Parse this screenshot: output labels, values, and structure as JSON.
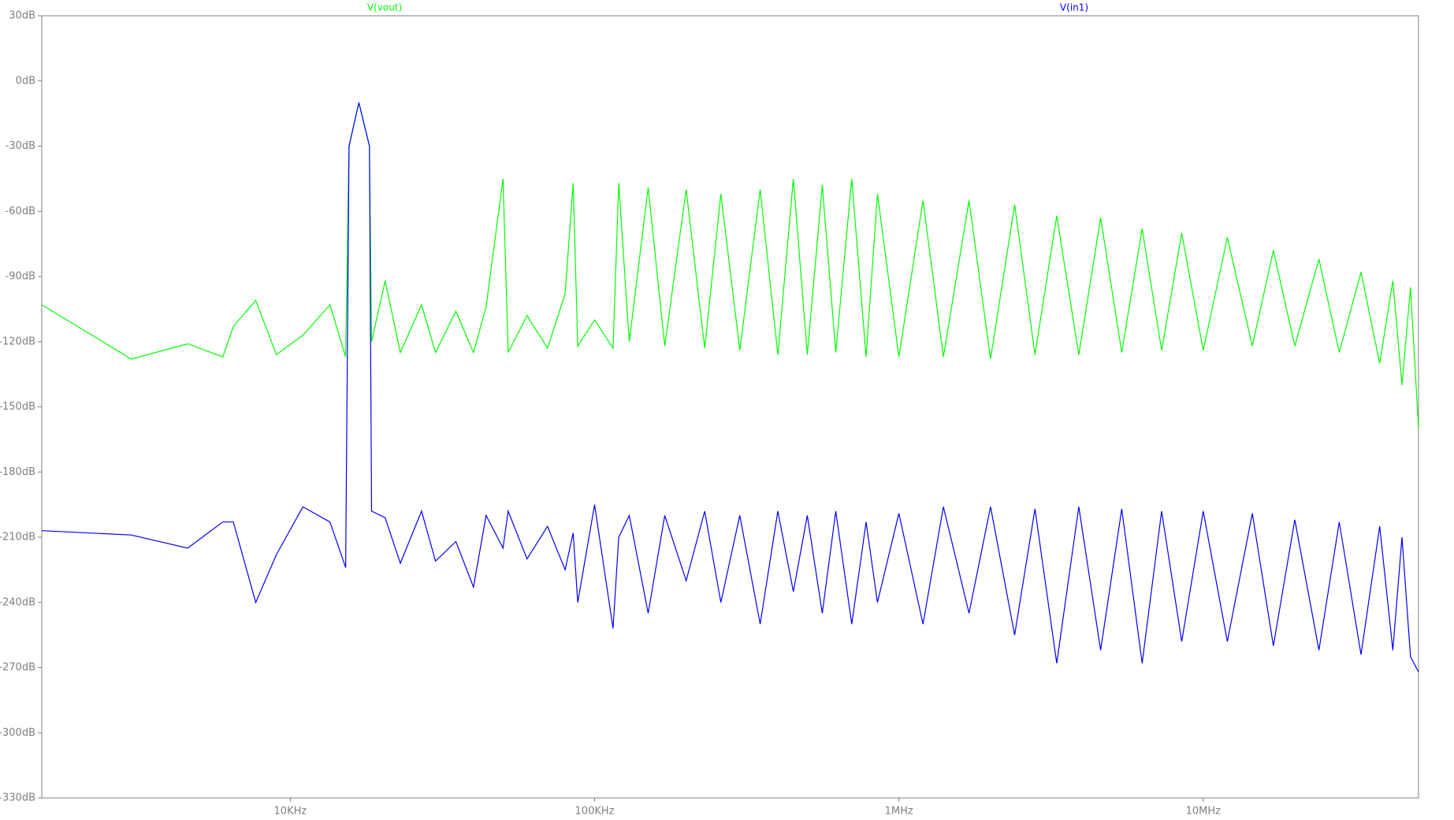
{
  "chart_data": {
    "type": "line",
    "xscale": "log",
    "grid": false,
    "x": [
      1525,
      3000,
      4600,
      6000,
      6500,
      7700,
      9000,
      11000,
      13500,
      15200,
      15600,
      16800,
      18200,
      18500,
      20500,
      23000,
      27000,
      30000,
      35000,
      40000,
      44000,
      50000,
      52000,
      60000,
      70000,
      80000,
      85000,
      88000,
      100000,
      115000,
      120000,
      130000,
      150000,
      170000,
      200000,
      230000,
      260000,
      300000,
      350000,
      400000,
      450000,
      500000,
      560000,
      620000,
      700000,
      780000,
      850000,
      1000000,
      1200000,
      1400000,
      1700000,
      2000000,
      2400000,
      2800000,
      3300000,
      3900000,
      4600000,
      5400000,
      6300000,
      7300000,
      8500000,
      10000000,
      12000000,
      14500000,
      17000000,
      20000000,
      24000000,
      28000000,
      33000000,
      38000000,
      42000000,
      45000000,
      48000000,
      51000000
    ],
    "series": [
      {
        "name": "V(vout)",
        "color": "#00ff00",
        "values": [
          -103,
          -128,
          -121,
          -127,
          -113,
          -101,
          -126,
          -117,
          -103,
          -127,
          -30,
          -10,
          -30,
          -120,
          -92,
          -125,
          -103,
          -125,
          -106,
          -125,
          -104,
          -45,
          -125,
          -108,
          -123,
          -98,
          -47,
          -122,
          -110,
          -123,
          -47,
          -120,
          -49,
          -122,
          -50,
          -123,
          -52,
          -124,
          -50,
          -126,
          -45,
          -126,
          -48,
          -125,
          -45,
          -127,
          -52,
          -127,
          -55,
          -127,
          -55,
          -128,
          -57,
          -126,
          -62,
          -126,
          -63,
          -125,
          -68,
          -124,
          -70,
          -124,
          -72,
          -122,
          -78,
          -122,
          -82,
          -125,
          -88,
          -130,
          -92,
          -140,
          -95,
          -160
        ]
      },
      {
        "name": "V(in1)",
        "color": "#0000ff",
        "values": [
          -207,
          -209,
          -215,
          -203,
          -203,
          -240,
          -218,
          -196,
          -203,
          -224,
          -30,
          -10,
          -30,
          -198,
          -201,
          -222,
          -198,
          -221,
          -212,
          -233,
          -200,
          -215,
          -198,
          -220,
          -205,
          -225,
          -208,
          -240,
          -195,
          -252,
          -210,
          -200,
          -245,
          -200,
          -230,
          -198,
          -240,
          -200,
          -250,
          -198,
          -235,
          -200,
          -245,
          -198,
          -250,
          -203,
          -240,
          -199,
          -250,
          -196,
          -245,
          -196,
          -255,
          -197,
          -268,
          -196,
          -262,
          -197,
          -268,
          -198,
          -258,
          -198,
          -258,
          -199,
          -260,
          -202,
          -262,
          -203,
          -264,
          -205,
          -262,
          -210,
          -265,
          -272
        ]
      }
    ],
    "xlim": [
      1525,
      51000000
    ],
    "xticks": [
      {
        "value": 10000,
        "label": "10KHz"
      },
      {
        "value": 100000,
        "label": "100KHz"
      },
      {
        "value": 1000000,
        "label": "1MHz"
      },
      {
        "value": 10000000,
        "label": "10MHz"
      }
    ],
    "ylim": [
      -330,
      30
    ],
    "yticks": [
      {
        "value": 30,
        "label": "30dB"
      },
      {
        "value": 0,
        "label": "0dB"
      },
      {
        "value": -30,
        "label": "-30dB"
      },
      {
        "value": -60,
        "label": "-60dB"
      },
      {
        "value": -90,
        "label": "-90dB"
      },
      {
        "value": -120,
        "label": "-120dB"
      },
      {
        "value": -150,
        "label": "-150dB"
      },
      {
        "value": -180,
        "label": "-180dB"
      },
      {
        "value": -210,
        "label": "-210dB"
      },
      {
        "value": -240,
        "label": "-240dB"
      },
      {
        "value": -270,
        "label": "-270dB"
      },
      {
        "value": -300,
        "label": "-300dB"
      },
      {
        "value": -330,
        "label": "-330dB"
      }
    ]
  }
}
